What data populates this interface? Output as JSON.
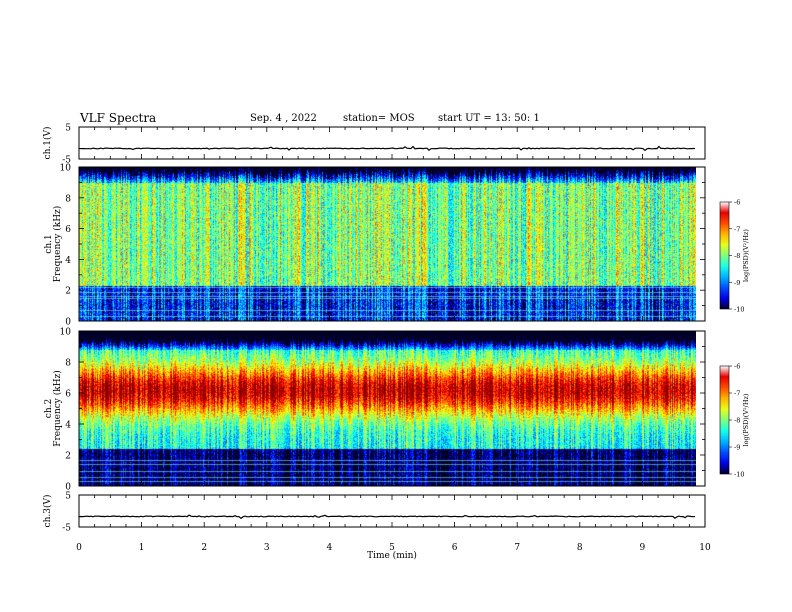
{
  "header": {
    "title": "VLF Spectra",
    "date": "Sep. 4 , 2022",
    "station": "station= MOS",
    "start_ut": "start  UT =   13: 50: 1"
  },
  "chart_data": [
    {
      "type": "line",
      "panel": "ch1-waveform",
      "ylabel": "ch.1(V)",
      "y_ticks": [
        "5",
        "-5"
      ],
      "ylim": [
        -5,
        5
      ],
      "x_range_min": [
        0,
        9.85
      ],
      "series": [
        {
          "values_description_level": -1.7
        }
      ]
    },
    {
      "type": "heatmap",
      "panel": "ch1-spectrogram",
      "ylabel": "ch.1\nFrequency (kHz)",
      "ylabel_line1": "ch.1",
      "ylabel_line2": "Frequency (kHz)",
      "y_ticks": [
        "0",
        "2",
        "4",
        "6",
        "8",
        "10"
      ],
      "ylim": [
        0,
        10
      ],
      "x_range_min": [
        0,
        9.85
      ],
      "colorbar": {
        "label": "log(PSD)(V²/Hz)",
        "ticks": [
          "-6",
          "-7",
          "-8",
          "-9",
          "-10"
        ],
        "range": [
          -10,
          -6
        ]
      }
    },
    {
      "type": "heatmap",
      "panel": "ch2-spectrogram",
      "ylabel_line1": "ch.2",
      "ylabel_line2": "Frequency (kHz)",
      "y_ticks": [
        "0",
        "2",
        "4",
        "6",
        "8",
        "10"
      ],
      "ylim": [
        0,
        10
      ],
      "x_range_min": [
        0,
        9.85
      ],
      "colorbar": {
        "label": "log(PSD)(V²/Hz)",
        "ticks": [
          "-6",
          "-7",
          "-8",
          "-9",
          "-10"
        ],
        "range": [
          -10,
          -6
        ]
      }
    },
    {
      "type": "line",
      "panel": "ch3-waveform",
      "ylabel": "ch.3(V)",
      "y_ticks": [
        "5",
        "-5"
      ],
      "ylim": [
        -5,
        5
      ],
      "x_range_min": [
        0,
        9.85
      ],
      "series": [
        {
          "values_description_level": -1.7
        }
      ]
    }
  ],
  "x_axis": {
    "label": "Time  (min)",
    "ticks": [
      "0",
      "1",
      "2",
      "3",
      "4",
      "5",
      "6",
      "7",
      "8",
      "9",
      "10"
    ],
    "xlim": [
      0,
      10
    ]
  }
}
